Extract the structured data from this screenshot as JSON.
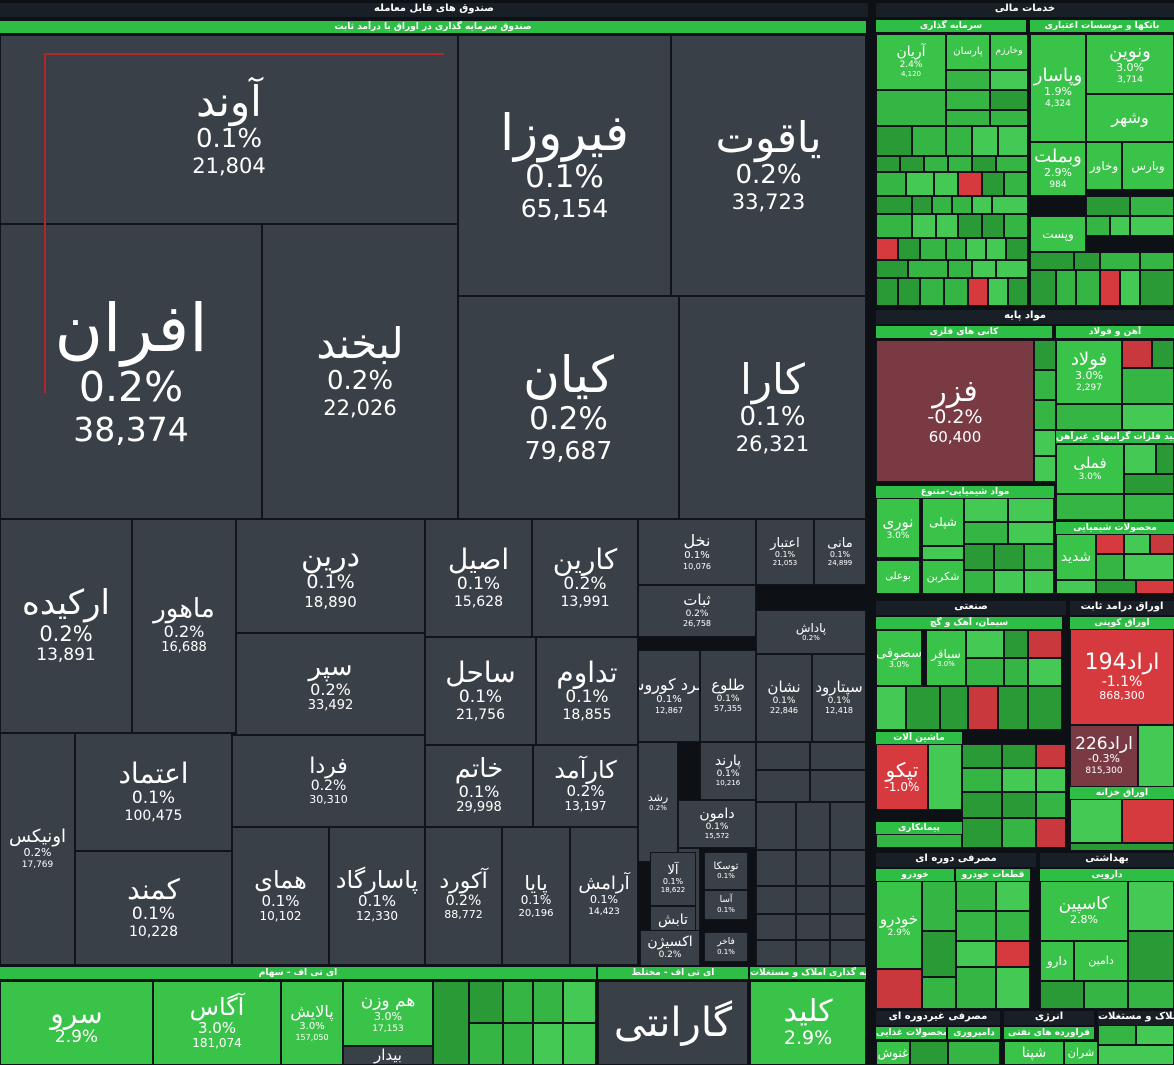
{
  "colors": {
    "neutral": "#3a4047",
    "positive": "#39c348",
    "positive_dark": "#1f8f2f",
    "negative": "#d63a3e",
    "negative_dark": "#7a3a44",
    "header_bg": "#191f27"
  },
  "chart_data": {
    "type": "treemap",
    "groups": [
      {
        "name": "صندوق های قابل معامله",
        "subgroups": [
          "صندوق سرمایه گذاری در اوراق با درآمد ثابت",
          "ای تی اف - سهام",
          "ای تی اف - مختلط",
          "سرمایه گذاری املاک و مستغلات"
        ]
      },
      {
        "name": "خدمات مالی",
        "subgroups": [
          "سرمایه گذاری",
          "بانکها و موسسات اعتباری"
        ]
      },
      {
        "name": "مواد پایه",
        "subgroups": [
          "کانی های فلزی",
          "آهن و فولاد",
          "تولید فلزات گرانبهای غیرآهن",
          "مواد شیمیایی-متنوع",
          "محصولات شیمیایی"
        ]
      },
      {
        "name": "صنعتی",
        "subgroups": [
          "سیمان، آهک و گچ",
          "ماشین آلات",
          "پیمانکاری"
        ]
      },
      {
        "name": "اوراق درآمد ثابت",
        "subgroups": [
          "اوراق کوپنی",
          "اوراق خزانه"
        ]
      },
      {
        "name": "مصرفی دوره ای",
        "subgroups": [
          "خودرو",
          "قطعات خودرو"
        ]
      },
      {
        "name": "بهداشتی",
        "subgroups": [
          "دارویی"
        ]
      },
      {
        "name": "مصرفی غیردوره ای",
        "subgroups": [
          "محصولات غذایی",
          "دامپروری"
        ]
      },
      {
        "name": "انرژی",
        "subgroups": [
          "فراورده های نفتی"
        ]
      },
      {
        "name": "املاک و مستغلات",
        "subgroups": []
      }
    ],
    "tiles": [
      {
        "name": "آوند",
        "change": "0.1%",
        "volume": "21,804",
        "change_value": 0.1
      },
      {
        "name": "فیروزا",
        "change": "0.1%",
        "volume": "65,154",
        "change_value": 0.1
      },
      {
        "name": "یاقوت",
        "change": "0.2%",
        "volume": "33,723",
        "change_value": 0.2
      },
      {
        "name": "افران",
        "change": "0.2%",
        "volume": "38,374",
        "change_value": 0.2
      },
      {
        "name": "لبخند",
        "change": "0.2%",
        "volume": "22,026",
        "change_value": 0.2
      },
      {
        "name": "کیان",
        "change": "0.2%",
        "volume": "79,687",
        "change_value": 0.2
      },
      {
        "name": "کارا",
        "change": "0.1%",
        "volume": "26,321",
        "change_value": 0.1
      },
      {
        "name": "ارکیده",
        "change": "0.2%",
        "volume": "13,891",
        "change_value": 0.2
      },
      {
        "name": "ماهور",
        "change": "0.2%",
        "volume": "16,688",
        "change_value": 0.2
      },
      {
        "name": "درین",
        "change": "0.1%",
        "volume": "18,890",
        "change_value": 0.1
      },
      {
        "name": "اصیل",
        "change": "0.1%",
        "volume": "15,628",
        "change_value": 0.1
      },
      {
        "name": "کارین",
        "change": "0.2%",
        "volume": "13,991",
        "change_value": 0.2
      },
      {
        "name": "نخل",
        "change": "0.1%",
        "volume": "10,076",
        "change_value": 0.1
      },
      {
        "name": "اعتبار",
        "change": "0.1%",
        "volume": "21,053",
        "change_value": 0.1
      },
      {
        "name": "مانی",
        "change": "0.1%",
        "volume": "24,899",
        "change_value": 0.1
      },
      {
        "name": "ثبات",
        "change": "0.2%",
        "volume": "26,758",
        "change_value": 0.2
      },
      {
        "name": "پاداش",
        "change": "0.2%",
        "volume": "",
        "change_value": 0.2
      },
      {
        "name": "سپر",
        "change": "0.2%",
        "volume": "33,492",
        "change_value": 0.2
      },
      {
        "name": "ساحل",
        "change": "0.1%",
        "volume": "21,756",
        "change_value": 0.1
      },
      {
        "name": "تداوم",
        "change": "0.1%",
        "volume": "18,855",
        "change_value": 0.1
      },
      {
        "name": "زمرد کوروش",
        "change": "0.1%",
        "volume": "12,867",
        "change_value": 0.1
      },
      {
        "name": "طلوع",
        "change": "0.1%",
        "volume": "57,355",
        "change_value": 0.1
      },
      {
        "name": "نشان",
        "change": "0.1%",
        "volume": "22,846",
        "change_value": 0.1
      },
      {
        "name": "سپتارود",
        "change": "0.1%",
        "volume": "12,418",
        "change_value": 0.1
      },
      {
        "name": "اونیکس",
        "change": "0.2%",
        "volume": "17,769",
        "change_value": 0.2
      },
      {
        "name": "اعتماد",
        "change": "0.1%",
        "volume": "100,475",
        "change_value": 0.1
      },
      {
        "name": "فردا",
        "change": "0.2%",
        "volume": "30,310",
        "change_value": 0.2
      },
      {
        "name": "خاتم",
        "change": "0.1%",
        "volume": "29,998",
        "change_value": 0.1
      },
      {
        "name": "کارآمد",
        "change": "0.2%",
        "volume": "13,197",
        "change_value": 0.2
      },
      {
        "name": "رشد",
        "change": "0.2%",
        "volume": "",
        "change_value": 0.2
      },
      {
        "name": "پارند",
        "change": "0.1%",
        "volume": "10,216",
        "change_value": 0.1
      },
      {
        "name": "دامون",
        "change": "0.1%",
        "volume": "15,572",
        "change_value": 0.1
      },
      {
        "name": "کمند",
        "change": "0.1%",
        "volume": "10,228",
        "change_value": 0.1
      },
      {
        "name": "همای",
        "change": "0.1%",
        "volume": "10,102",
        "change_value": 0.1
      },
      {
        "name": "پاسارگاد",
        "change": "0.1%",
        "volume": "12,330",
        "change_value": 0.1
      },
      {
        "name": "آکورد",
        "change": "0.2%",
        "volume": "88,772",
        "change_value": 0.2
      },
      {
        "name": "پایا",
        "change": "0.1%",
        "volume": "20,196",
        "change_value": 0.1
      },
      {
        "name": "آرامش",
        "change": "0.1%",
        "volume": "14,423",
        "change_value": 0.1
      },
      {
        "name": "آلا",
        "change": "0.1%",
        "volume": "18,622",
        "change_value": 0.1
      },
      {
        "name": "توسکا",
        "change": "0.1%",
        "volume": "",
        "change_value": 0.1
      },
      {
        "name": "تابش",
        "change": "",
        "volume": "",
        "change_value": 0
      },
      {
        "name": "اکسیژن",
        "change": "0.2%",
        "volume": "",
        "change_value": 0.2
      },
      {
        "name": "آسا",
        "change": "0.1%",
        "volume": "",
        "change_value": 0.1
      },
      {
        "name": "فاخر",
        "change": "0.1%",
        "volume": "",
        "change_value": 0.1
      },
      {
        "name": "سرو",
        "change": "2.9%",
        "volume": "",
        "change_value": 2.9
      },
      {
        "name": "آگاس",
        "change": "3.0%",
        "volume": "181,074",
        "change_value": 3.0
      },
      {
        "name": "پالایش",
        "change": "3.0%",
        "volume": "157,050",
        "change_value": 3.0
      },
      {
        "name": "هم وزن",
        "change": "3.0%",
        "volume": "17,153",
        "change_value": 3.0
      },
      {
        "name": "بیدار",
        "change": "",
        "volume": "",
        "change_value": 0
      },
      {
        "name": "گارانتی",
        "change": "",
        "volume": "",
        "change_value": 0
      },
      {
        "name": "کلید",
        "change": "2.9%",
        "volume": "",
        "change_value": 2.9
      },
      {
        "name": "آریان",
        "change": "2.4%",
        "volume": "4,120",
        "change_value": 2.4
      },
      {
        "name": "پارسان",
        "change": "",
        "volume": "",
        "change_value": 2
      },
      {
        "name": "وخارزم",
        "change": "",
        "volume": "",
        "change_value": 2
      },
      {
        "name": "وپاسار",
        "change": "1.9%",
        "volume": "4,324",
        "change_value": 1.9
      },
      {
        "name": "ونوین",
        "change": "3.0%",
        "volume": "3,714",
        "change_value": 3.0
      },
      {
        "name": "وشهر",
        "change": "",
        "volume": "",
        "change_value": 2
      },
      {
        "name": "وبملت",
        "change": "2.9%",
        "volume": "984",
        "change_value": 2.9
      },
      {
        "name": "وخاور",
        "change": "",
        "volume": "",
        "change_value": 2
      },
      {
        "name": "وبارس",
        "change": "",
        "volume": "",
        "change_value": 2
      },
      {
        "name": "وپست",
        "change": "",
        "volume": "",
        "change_value": 2
      },
      {
        "name": "فزر",
        "change": "-0.2%",
        "volume": "60,400",
        "change_value": -0.2
      },
      {
        "name": "فولاد",
        "change": "3.0%",
        "volume": "2,297",
        "change_value": 3.0
      },
      {
        "name": "فملی",
        "change": "3.0%",
        "volume": "",
        "change_value": 3.0
      },
      {
        "name": "نوری",
        "change": "3.0%",
        "volume": "",
        "change_value": 3.0
      },
      {
        "name": "شپلی",
        "change": "",
        "volume": "",
        "change_value": 2
      },
      {
        "name": "شدید",
        "change": "",
        "volume": "",
        "change_value": 2
      },
      {
        "name": "بوعلی",
        "change": "",
        "volume": "",
        "change_value": 2
      },
      {
        "name": "شکربن",
        "change": "",
        "volume": "",
        "change_value": 2
      },
      {
        "name": "سصوفی",
        "change": "3.0%",
        "volume": "",
        "change_value": 3.0
      },
      {
        "name": "سباقر",
        "change": "3.0%",
        "volume": "",
        "change_value": 3.0
      },
      {
        "name": "اراد194",
        "change": "-1.1%",
        "volume": "868,300",
        "change_value": -1.1
      },
      {
        "name": "اراد226",
        "change": "-0.3%",
        "volume": "815,300",
        "change_value": -0.3
      },
      {
        "name": "تپکو",
        "change": "-1.0%",
        "volume": "",
        "change_value": -1.0
      },
      {
        "name": "خودرو",
        "change": "2.9%",
        "volume": "",
        "change_value": 2.9
      },
      {
        "name": "کاسپین",
        "change": "2.8%",
        "volume": "",
        "change_value": 2.8
      },
      {
        "name": "دارو",
        "change": "",
        "volume": "",
        "change_value": 2
      },
      {
        "name": "دامین",
        "change": "",
        "volume": "",
        "change_value": 2
      },
      {
        "name": "غنوش",
        "change": "",
        "volume": "",
        "change_value": 2
      },
      {
        "name": "شپنا",
        "change": "",
        "volume": "",
        "change_value": 2
      },
      {
        "name": "شران",
        "change": "",
        "volume": "",
        "change_value": 2
      }
    ]
  }
}
